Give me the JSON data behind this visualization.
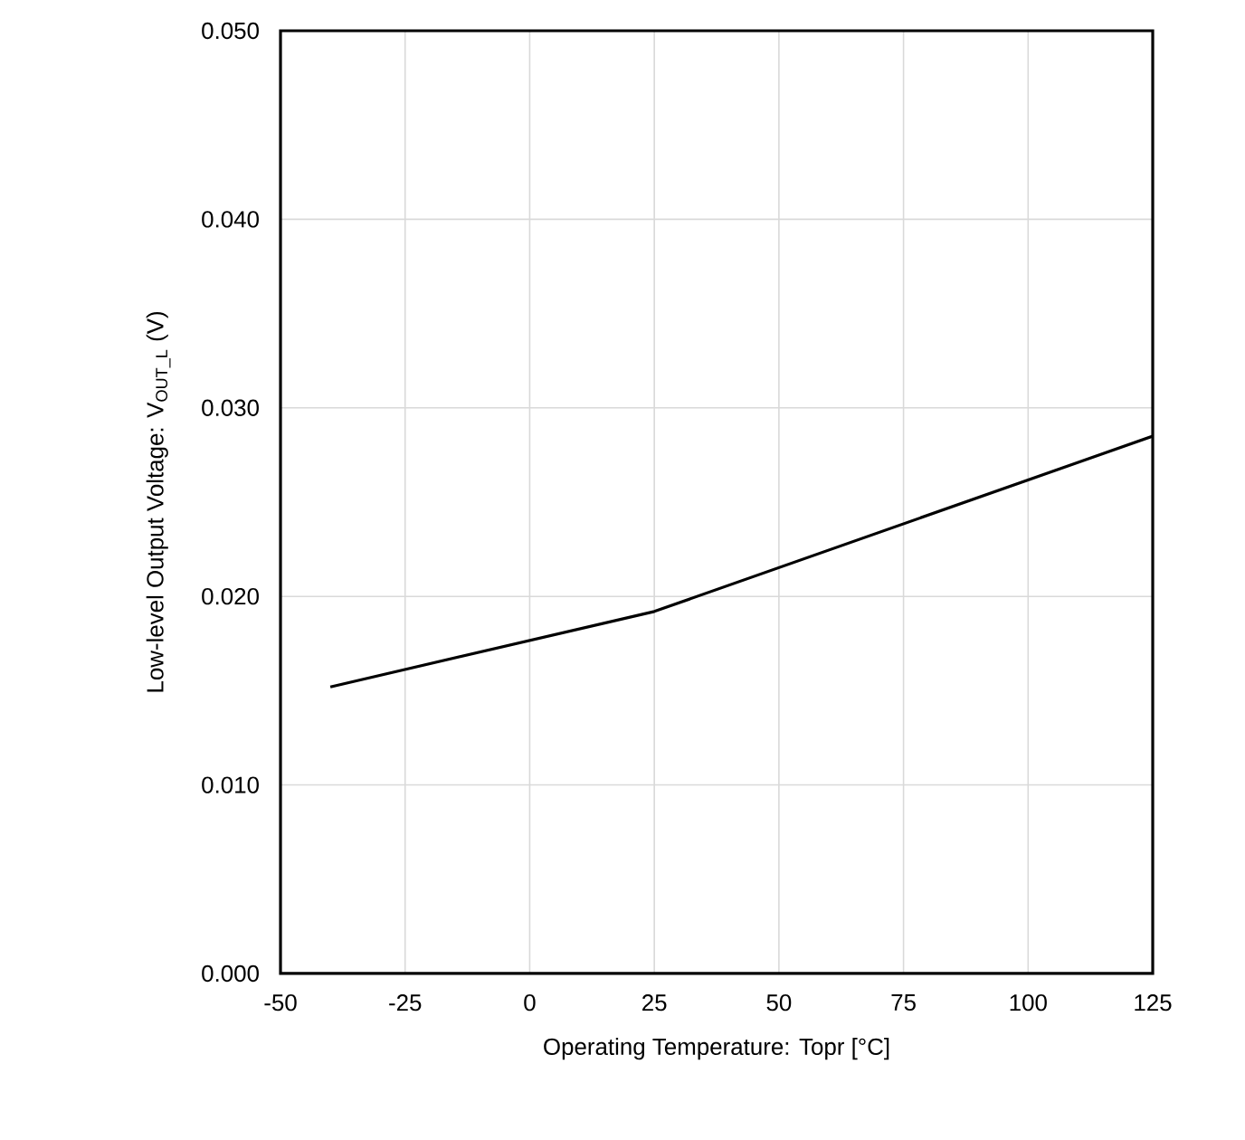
{
  "chart_data": {
    "type": "line",
    "xlabel": "Operating Temperature: Topr [°C]",
    "ylabel": "Low-level Output Voltage: V$_{OUT_L}$ (V)",
    "x": [
      -40,
      25,
      125
    ],
    "series": [
      {
        "color": "#000000",
        "values": [
          0.0152,
          0.0192,
          0.0285
        ]
      }
    ],
    "xlim": [
      -50,
      125
    ],
    "xticks": [
      -50,
      -25,
      0,
      25,
      50,
      75,
      100,
      125
    ],
    "ylim": [
      0,
      0.05
    ],
    "yticks": [
      {
        "value": 0,
        "label": "0.000"
      },
      {
        "value": 0.01,
        "label": "0.010"
      },
      {
        "value": 0.02,
        "label": "0.020"
      },
      {
        "value": 0.03,
        "label": "0.030"
      },
      {
        "value": 0.04,
        "label": "0.040"
      },
      {
        "value": 0.05,
        "label": "0.050"
      }
    ],
    "grid": true,
    "marker": "none",
    "line_style": "solid"
  }
}
